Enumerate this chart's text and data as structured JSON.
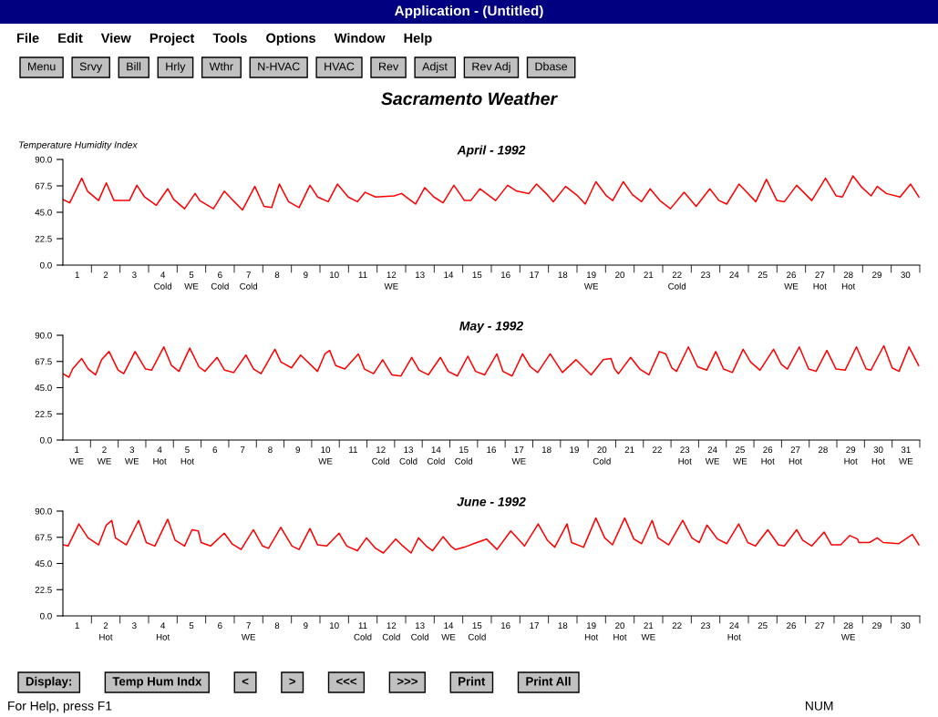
{
  "chart_data": [
    {
      "type": "other",
      "title": "Application - (Untitled)",
      "annotations": [
        "File",
        "Edit",
        "View",
        "Project",
        "Tools",
        "Options",
        "Window",
        "Help"
      ]
    },
    {
      "type": "other",
      "annotations": [
        "Menu",
        "Srvy",
        "Bill",
        "Hrly",
        "Wthr",
        "N-HVAC",
        "HVAC",
        "Rev",
        "Adjst",
        "Rev Adj",
        "Dbase"
      ]
    },
    {
      "type": "other",
      "title": "Sacramento Weather"
    },
    {
      "type": "line",
      "title": "April - 1992",
      "ylabel": "Temperature Humidity Index",
      "xlim": [
        0,
        30
      ],
      "ylim": [
        0,
        90
      ],
      "yticks": [
        {
          "value": 0,
          "label": "0.0"
        },
        {
          "value": 22.5,
          "label": "22.5"
        },
        {
          "value": 45,
          "label": "45.0"
        },
        {
          "value": 67.5,
          "label": "67.5"
        },
        {
          "value": 90,
          "label": "90.0"
        }
      ],
      "xticks": [
        {
          "value": 0.5,
          "label": "1"
        },
        {
          "value": 1.5,
          "label": "2"
        },
        {
          "value": 2.5,
          "label": "3"
        },
        {
          "value": 3.5,
          "label": "4\nCold"
        },
        {
          "value": 4.5,
          "label": "5\nWE"
        },
        {
          "value": 5.5,
          "label": "6\nCold"
        },
        {
          "value": 6.5,
          "label": "7\nCold"
        },
        {
          "value": 7.5,
          "label": "8"
        },
        {
          "value": 8.5,
          "label": "9"
        },
        {
          "value": 9.5,
          "label": "10"
        },
        {
          "value": 10.5,
          "label": "11"
        },
        {
          "value": 11.5,
          "label": "12\nWE"
        },
        {
          "value": 12.5,
          "label": "13"
        },
        {
          "value": 13.5,
          "label": "14"
        },
        {
          "value": 14.5,
          "label": "15"
        },
        {
          "value": 15.5,
          "label": "16"
        },
        {
          "value": 16.5,
          "label": "17"
        },
        {
          "value": 17.5,
          "label": "18"
        },
        {
          "value": 18.5,
          "label": "19\nWE"
        },
        {
          "value": 19.5,
          "label": "20"
        },
        {
          "value": 20.5,
          "label": "21"
        },
        {
          "value": 21.5,
          "label": "22\nCold"
        },
        {
          "value": 22.5,
          "label": "23"
        },
        {
          "value": 23.5,
          "label": "24"
        },
        {
          "value": 24.5,
          "label": "25"
        },
        {
          "value": 25.5,
          "label": "26\nWE"
        },
        {
          "value": 26.5,
          "label": "27\nHot"
        },
        {
          "value": 27.5,
          "label": "28\nHot"
        },
        {
          "value": 28.5,
          "label": "29"
        },
        {
          "value": 29.5,
          "label": "30"
        },
        {
          "value": 1,
          "label": null
        },
        {
          "value": 2,
          "label": null
        },
        {
          "value": 3,
          "label": null
        },
        {
          "value": 4,
          "label": null
        },
        {
          "value": 5,
          "label": null
        },
        {
          "value": 6,
          "label": null
        },
        {
          "value": 7,
          "label": null
        },
        {
          "value": 8,
          "label": null
        },
        {
          "value": 9,
          "label": null
        },
        {
          "value": 10,
          "label": null
        },
        {
          "value": 11,
          "label": null
        },
        {
          "value": 12,
          "label": null
        },
        {
          "value": 13,
          "label": null
        },
        {
          "value": 14,
          "label": null
        },
        {
          "value": 15,
          "label": null
        },
        {
          "value": 16,
          "label": null
        },
        {
          "value": 17,
          "label": null
        },
        {
          "value": 18,
          "label": null
        },
        {
          "value": 19,
          "label": null
        },
        {
          "value": 20,
          "label": null
        },
        {
          "value": 21,
          "label": null
        },
        {
          "value": 22,
          "label": null
        },
        {
          "value": 23,
          "label": null
        },
        {
          "value": 24,
          "label": null
        },
        {
          "value": 25,
          "label": null
        },
        {
          "value": 26,
          "label": null
        },
        {
          "value": 27,
          "label": null
        },
        {
          "value": 28,
          "label": null
        },
        {
          "value": 29,
          "label": null
        },
        {
          "value": 30,
          "label": null
        }
      ],
      "grid": false,
      "legend": false,
      "marker": "none",
      "line_style": "solid",
      "series": [
        {
          "color": "#ff0000",
          "x": [
            0,
            0.24,
            0.66,
            0.86,
            1.25,
            1.52,
            1.79,
            2.33,
            2.59,
            2.86,
            3.27,
            3.67,
            3.88,
            4.26,
            4.63,
            4.79,
            5.27,
            5.65,
            5.92,
            6.29,
            6.72,
            7.04,
            7.31,
            7.58,
            7.9,
            8.27,
            8.65,
            8.92,
            9.29,
            9.61,
            9.99,
            10.31,
            10.58,
            10.95,
            11.6,
            11.86,
            12.13,
            12.35,
            12.67,
            12.99,
            13.31,
            13.69,
            14.06,
            14.28,
            14.6,
            15.15,
            15.57,
            15.89,
            16.32,
            16.58,
            16.96,
            17.17,
            17.6,
            18.02,
            18.29,
            18.66,
            19.03,
            19.25,
            19.62,
            19.94,
            20.26,
            20.56,
            20.9,
            21.27,
            21.75,
            22.17,
            22.65,
            22.97,
            23.24,
            23.67,
            24.26,
            24.63,
            25,
            25.26,
            25.69,
            26.22,
            26.7,
            27.07,
            27.29,
            27.66,
            27.98,
            28.3,
            28.51,
            28.83,
            29.31,
            29.68,
            29.97
          ],
          "values": [
            56,
            53,
            74,
            63,
            55,
            70,
            55,
            55,
            68,
            58,
            51,
            65,
            56,
            48,
            61,
            55,
            48,
            63,
            56,
            47,
            67,
            50,
            49,
            69,
            54,
            49,
            68,
            58,
            54,
            69,
            58,
            54,
            62,
            58,
            59,
            61,
            56,
            52,
            66,
            58,
            53,
            68,
            55,
            55,
            65,
            55,
            68,
            63,
            61,
            69,
            60,
            54,
            67,
            59,
            52,
            71,
            59,
            55,
            71,
            60,
            54,
            65,
            55,
            48,
            62,
            50,
            65,
            55,
            52,
            69,
            54,
            73,
            55,
            54,
            68,
            55,
            74,
            59,
            58,
            76,
            66,
            59,
            67,
            61,
            58,
            69,
            58
          ]
        }
      ]
    },
    {
      "type": "line",
      "title": "May - 1992",
      "xlim": [
        0,
        31
      ],
      "ylim": [
        0,
        90
      ],
      "yticks": [
        {
          "value": 0,
          "label": "0.0"
        },
        {
          "value": 22.5,
          "label": "22.5"
        },
        {
          "value": 45,
          "label": "45.0"
        },
        {
          "value": 67.5,
          "label": "67.5"
        },
        {
          "value": 90,
          "label": "90.0"
        }
      ],
      "xticks": [
        {
          "value": 0.5,
          "label": "1\nWE"
        },
        {
          "value": 1.5,
          "label": "2\nWE"
        },
        {
          "value": 2.5,
          "label": "3\nWE"
        },
        {
          "value": 3.5,
          "label": "4\nHot"
        },
        {
          "value": 4.5,
          "label": "5\nHot"
        },
        {
          "value": 5.5,
          "label": "6"
        },
        {
          "value": 6.5,
          "label": "7"
        },
        {
          "value": 7.5,
          "label": "8"
        },
        {
          "value": 8.5,
          "label": "9"
        },
        {
          "value": 9.5,
          "label": "10\nWE"
        },
        {
          "value": 10.5,
          "label": "11"
        },
        {
          "value": 11.5,
          "label": "12\nCold"
        },
        {
          "value": 12.5,
          "label": "13\nCold"
        },
        {
          "value": 13.5,
          "label": "14\nCold"
        },
        {
          "value": 14.5,
          "label": "15\nCold"
        },
        {
          "value": 15.5,
          "label": "16"
        },
        {
          "value": 16.5,
          "label": "17\nWE"
        },
        {
          "value": 17.5,
          "label": "18"
        },
        {
          "value": 18.5,
          "label": "19"
        },
        {
          "value": 19.5,
          "label": "20\nCold"
        },
        {
          "value": 20.5,
          "label": "21"
        },
        {
          "value": 21.5,
          "label": "22"
        },
        {
          "value": 22.5,
          "label": "23\nHot"
        },
        {
          "value": 23.5,
          "label": "24\nWE"
        },
        {
          "value": 24.5,
          "label": "25\nWE"
        },
        {
          "value": 25.5,
          "label": "26\nHot"
        },
        {
          "value": 26.5,
          "label": "27\nHot"
        },
        {
          "value": 27.5,
          "label": "28"
        },
        {
          "value": 28.5,
          "label": "29\nHot"
        },
        {
          "value": 29.5,
          "label": "30\nHot"
        },
        {
          "value": 30.5,
          "label": "31\nWE"
        },
        {
          "value": 1,
          "label": null
        },
        {
          "value": 2,
          "label": null
        },
        {
          "value": 3,
          "label": null
        },
        {
          "value": 4,
          "label": null
        },
        {
          "value": 5,
          "label": null
        },
        {
          "value": 6,
          "label": null
        },
        {
          "value": 7,
          "label": null
        },
        {
          "value": 8,
          "label": null
        },
        {
          "value": 9,
          "label": null
        },
        {
          "value": 10,
          "label": null
        },
        {
          "value": 11,
          "label": null
        },
        {
          "value": 12,
          "label": null
        },
        {
          "value": 13,
          "label": null
        },
        {
          "value": 14,
          "label": null
        },
        {
          "value": 15,
          "label": null
        },
        {
          "value": 16,
          "label": null
        },
        {
          "value": 17,
          "label": null
        },
        {
          "value": 18,
          "label": null
        },
        {
          "value": 19,
          "label": null
        },
        {
          "value": 20,
          "label": null
        },
        {
          "value": 21,
          "label": null
        },
        {
          "value": 22,
          "label": null
        },
        {
          "value": 23,
          "label": null
        },
        {
          "value": 24,
          "label": null
        },
        {
          "value": 25,
          "label": null
        },
        {
          "value": 26,
          "label": null
        },
        {
          "value": 27,
          "label": null
        },
        {
          "value": 28,
          "label": null
        },
        {
          "value": 29,
          "label": null
        },
        {
          "value": 30,
          "label": null
        },
        {
          "value": 31,
          "label": null
        }
      ],
      "grid": false,
      "legend": false,
      "marker": "none",
      "line_style": "solid",
      "series": [
        {
          "color": "#ff0000",
          "x": [
            0,
            0.22,
            0.35,
            0.68,
            0.92,
            1.18,
            1.4,
            1.67,
            2.0,
            2.2,
            2.61,
            2.99,
            3.21,
            3.65,
            3.93,
            4.2,
            4.59,
            4.92,
            5.14,
            5.58,
            5.85,
            6.18,
            6.62,
            6.9,
            7.17,
            7.67,
            7.89,
            8.27,
            8.6,
            9.21,
            9.48,
            9.65,
            9.87,
            10.2,
            10.69,
            10.91,
            11.24,
            11.57,
            11.9,
            12.23,
            12.62,
            12.89,
            13.22,
            13.66,
            13.94,
            14.27,
            14.65,
            14.93,
            15.26,
            15.7,
            15.92,
            16.25,
            16.63,
            16.91,
            17.18,
            17.63,
            18.07,
            18.56,
            19.11,
            19.55,
            19.83,
            19.96,
            20.1,
            20.54,
            20.87,
            21.2,
            21.58,
            21.81,
            22.03,
            22.2,
            22.63,
            22.96,
            23.29,
            23.62,
            23.9,
            24.22,
            24.61,
            24.88,
            25.22,
            25.71,
            25.99,
            26.21,
            26.64,
            26.98,
            27.25,
            27.64,
            27.97,
            28.3,
            28.71,
            29.06,
            29.23,
            29.7,
            30.0,
            30.25,
            30.61,
            30.96
          ],
          "values": [
            57,
            54,
            61,
            70,
            61,
            56,
            69,
            76,
            60,
            57,
            76,
            61,
            60,
            80,
            64,
            59,
            79,
            63,
            59,
            71,
            60,
            58,
            73,
            61,
            57,
            78,
            67,
            62,
            73,
            59,
            74,
            77,
            64,
            61,
            74,
            61,
            57,
            69,
            56,
            55,
            71,
            60,
            56,
            71,
            59,
            55,
            72,
            59,
            56,
            74,
            59,
            55,
            74,
            63,
            58,
            74,
            58,
            69,
            56,
            69,
            70,
            61,
            57,
            71,
            61,
            56,
            76,
            74,
            62,
            59,
            80,
            63,
            60,
            76,
            61,
            58,
            78,
            67,
            60,
            78,
            65,
            61,
            80,
            61,
            59,
            77,
            61,
            60,
            80,
            61,
            60,
            81,
            62,
            59,
            80,
            64
          ]
        }
      ]
    },
    {
      "type": "line",
      "title": "June - 1992",
      "xlim": [
        0,
        30
      ],
      "ylim": [
        0,
        90
      ],
      "yticks": [
        {
          "value": 0,
          "label": "0.0"
        },
        {
          "value": 22.5,
          "label": "22.5"
        },
        {
          "value": 45,
          "label": "45.0"
        },
        {
          "value": 67.5,
          "label": "67.5"
        },
        {
          "value": 90,
          "label": "90.0"
        }
      ],
      "xticks": [
        {
          "value": 0.5,
          "label": "1"
        },
        {
          "value": 1.5,
          "label": "2\nHot"
        },
        {
          "value": 2.5,
          "label": "3"
        },
        {
          "value": 3.5,
          "label": "4\nHot"
        },
        {
          "value": 4.5,
          "label": "5"
        },
        {
          "value": 5.5,
          "label": "6"
        },
        {
          "value": 6.5,
          "label": "7\nWE"
        },
        {
          "value": 7.5,
          "label": "8"
        },
        {
          "value": 8.5,
          "label": "9"
        },
        {
          "value": 9.5,
          "label": "10"
        },
        {
          "value": 10.5,
          "label": "11\nCold"
        },
        {
          "value": 11.5,
          "label": "12\nCold"
        },
        {
          "value": 12.5,
          "label": "13\nCold"
        },
        {
          "value": 13.5,
          "label": "14\nWE"
        },
        {
          "value": 14.5,
          "label": "15\nCold"
        },
        {
          "value": 15.5,
          "label": "16"
        },
        {
          "value": 16.5,
          "label": "17"
        },
        {
          "value": 17.5,
          "label": "18"
        },
        {
          "value": 18.5,
          "label": "19\nHot"
        },
        {
          "value": 19.5,
          "label": "20\nHot"
        },
        {
          "value": 20.5,
          "label": "21\nWE"
        },
        {
          "value": 21.5,
          "label": "22"
        },
        {
          "value": 22.5,
          "label": "23"
        },
        {
          "value": 23.5,
          "label": "24\nHot"
        },
        {
          "value": 24.5,
          "label": "25"
        },
        {
          "value": 25.5,
          "label": "26"
        },
        {
          "value": 26.5,
          "label": "27"
        },
        {
          "value": 27.5,
          "label": "28\nWE"
        },
        {
          "value": 28.5,
          "label": "29"
        },
        {
          "value": 29.5,
          "label": "30"
        },
        {
          "value": 1,
          "label": null
        },
        {
          "value": 2,
          "label": null
        },
        {
          "value": 3,
          "label": null
        },
        {
          "value": 4,
          "label": null
        },
        {
          "value": 5,
          "label": null
        },
        {
          "value": 6,
          "label": null
        },
        {
          "value": 7,
          "label": null
        },
        {
          "value": 8,
          "label": null
        },
        {
          "value": 9,
          "label": null
        },
        {
          "value": 10,
          "label": null
        },
        {
          "value": 11,
          "label": null
        },
        {
          "value": 12,
          "label": null
        },
        {
          "value": 13,
          "label": null
        },
        {
          "value": 14,
          "label": null
        },
        {
          "value": 15,
          "label": null
        },
        {
          "value": 16,
          "label": null
        },
        {
          "value": 17,
          "label": null
        },
        {
          "value": 18,
          "label": null
        },
        {
          "value": 19,
          "label": null
        },
        {
          "value": 20,
          "label": null
        },
        {
          "value": 21,
          "label": null
        },
        {
          "value": 22,
          "label": null
        },
        {
          "value": 23,
          "label": null
        },
        {
          "value": 24,
          "label": null
        },
        {
          "value": 25,
          "label": null
        },
        {
          "value": 26,
          "label": null
        },
        {
          "value": 27,
          "label": null
        },
        {
          "value": 28,
          "label": null
        },
        {
          "value": 29,
          "label": null
        },
        {
          "value": 30,
          "label": null
        }
      ],
      "grid": false,
      "legend": false,
      "marker": "none",
      "line_style": "solid",
      "series": [
        {
          "color": "#ff0000",
          "x": [
            0,
            0.18,
            0.56,
            0.88,
            1.25,
            1.52,
            1.71,
            1.84,
            2.22,
            2.65,
            2.92,
            3.22,
            3.67,
            3.93,
            4.26,
            4.52,
            4.74,
            4.84,
            5.17,
            5.65,
            5.92,
            6.24,
            6.67,
            6.99,
            7.2,
            7.63,
            8.02,
            8.27,
            8.65,
            8.92,
            9.24,
            9.67,
            9.94,
            10.31,
            10.63,
            10.95,
            11.22,
            11.65,
            11.86,
            12.19,
            12.45,
            12.72,
            12.94,
            13.31,
            13.58,
            13.74,
            14.06,
            14.38,
            14.83,
            15.2,
            15.68,
            16.16,
            16.64,
            16.96,
            17.22,
            17.65,
            17.81,
            18.23,
            18.66,
            18.97,
            19.24,
            19.67,
            19.99,
            20.26,
            20.63,
            20.84,
            21.21,
            21.7,
            22.02,
            22.28,
            22.55,
            22.92,
            23.24,
            23.66,
            23.98,
            24.25,
            24.68,
            25.05,
            25.26,
            25.69,
            25.9,
            26.22,
            26.65,
            26.91,
            27.23,
            27.55,
            27.82,
            27.87,
            28.24,
            28.51,
            28.72,
            29.26,
            29.74,
            29.97
          ],
          "values": [
            61,
            60,
            79,
            67,
            61,
            78,
            82,
            67,
            61,
            82,
            63,
            60,
            83,
            65,
            60,
            74,
            73,
            63,
            60,
            71,
            62,
            57,
            74,
            60,
            58,
            76,
            60,
            57,
            75,
            61,
            60,
            71,
            60,
            56,
            67,
            58,
            54,
            66,
            61,
            54,
            67,
            60,
            56,
            68,
            60,
            57,
            59,
            62,
            66,
            57,
            73,
            60,
            79,
            65,
            59,
            79,
            63,
            59,
            84,
            67,
            61,
            84,
            66,
            62,
            82,
            67,
            61,
            82,
            67,
            63,
            78,
            66,
            62,
            79,
            63,
            60,
            74,
            61,
            60,
            74,
            65,
            60,
            72,
            61,
            61,
            69,
            66,
            63,
            63,
            67,
            63,
            62,
            70,
            61
          ]
        }
      ]
    },
    {
      "type": "other",
      "annotations": [
        "Display:",
        "Temp Hum Indx",
        "<",
        ">",
        "<<<",
        ">>>",
        "Print",
        "Print All"
      ]
    },
    {
      "type": "other",
      "annotations": [
        "For Help, press F1",
        "NUM"
      ]
    }
  ]
}
